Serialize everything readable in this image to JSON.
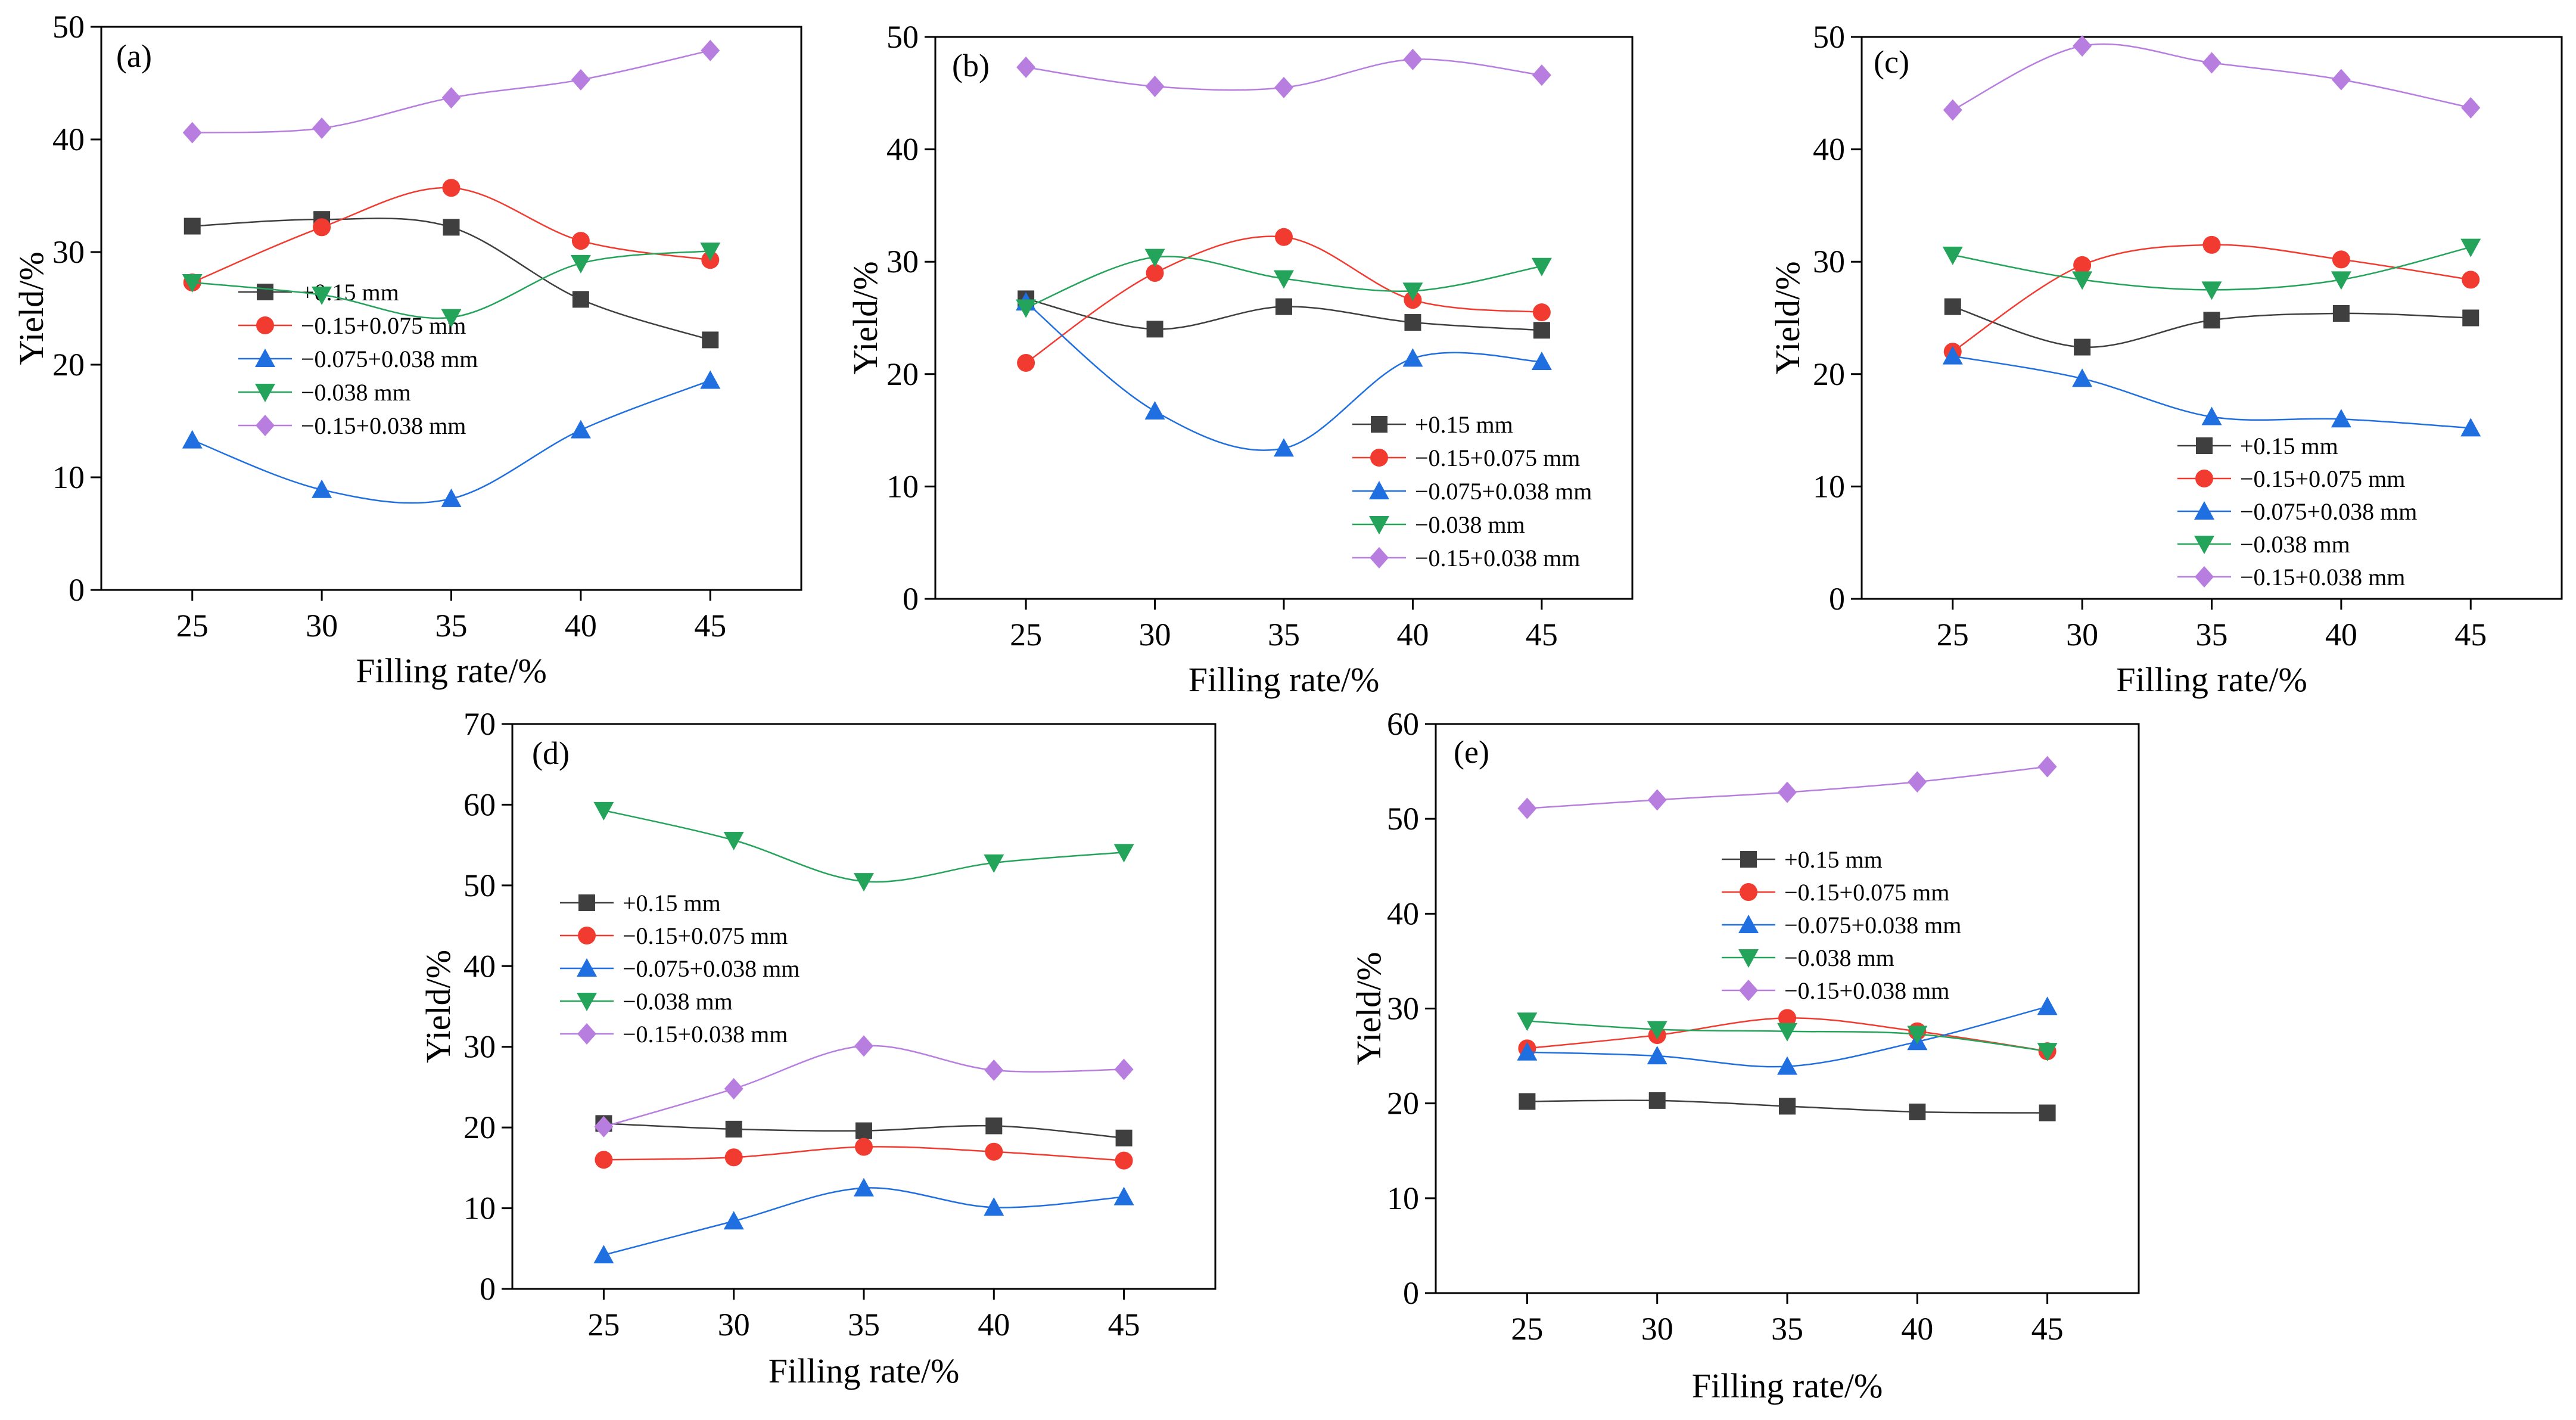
{
  "colors": {
    "+0.15 mm": "#3f3f3f",
    "-0.15+0.075 mm": "#f23b30",
    "-0.075+0.038 mm": "#1f6fe0",
    "-0.038 mm": "#24a45a",
    "-0.15+0.038 mm": "#b77ee0"
  },
  "chart_data": [
    {
      "type": "line",
      "panel": "(a)",
      "xlabel": "Filling rate/%",
      "ylabel": "Yield/%",
      "x": [
        25,
        30,
        35,
        40,
        45
      ],
      "xticks": [
        "25",
        "30",
        "35",
        "40",
        "45"
      ],
      "ylim": [
        0,
        50
      ],
      "yticks": [
        "0",
        "10",
        "20",
        "30",
        "40",
        "50"
      ],
      "series": [
        {
          "name": "+0.15 mm",
          "label": "+0.15 mm",
          "marker": "square",
          "values": [
            32.3,
            32.9,
            32.2,
            25.8,
            22.2
          ]
        },
        {
          "name": "-0.15+0.075 mm",
          "label": "−0.15+0.075 mm",
          "marker": "circle",
          "values": [
            27.3,
            32.2,
            35.7,
            31.0,
            29.3
          ]
        },
        {
          "name": "-0.075+0.038 mm",
          "label": "−0.075+0.038 mm",
          "marker": "triangle-up",
          "values": [
            13.3,
            8.9,
            8.1,
            14.2,
            18.6
          ]
        },
        {
          "name": "-0.038 mm",
          "label": "−0.038 mm",
          "marker": "triangle-down",
          "values": [
            27.3,
            26.2,
            24.2,
            29.0,
            30.1
          ]
        },
        {
          "name": "-0.15+0.038 mm",
          "label": "−0.15+0.038 mm",
          "marker": "diamond",
          "values": [
            40.6,
            41.0,
            43.7,
            45.3,
            47.9
          ]
        }
      ]
    },
    {
      "type": "line",
      "panel": "(b)",
      "xlabel": "Filling rate/%",
      "ylabel": "Yield/%",
      "x": [
        25,
        30,
        35,
        40,
        45
      ],
      "xticks": [
        "25",
        "30",
        "35",
        "40",
        "45"
      ],
      "ylim": [
        0,
        50
      ],
      "yticks": [
        "0",
        "10",
        "20",
        "30",
        "40",
        "50"
      ],
      "series": [
        {
          "name": "+0.15 mm",
          "label": "+0.15 mm",
          "marker": "square",
          "values": [
            26.7,
            24.0,
            26.0,
            24.6,
            23.9
          ]
        },
        {
          "name": "-0.15+0.075 mm",
          "label": "−0.15+0.075 mm",
          "marker": "circle",
          "values": [
            21.0,
            29.0,
            32.2,
            26.6,
            25.5
          ]
        },
        {
          "name": "-0.075+0.038 mm",
          "label": "−0.075+0.038 mm",
          "marker": "triangle-up",
          "values": [
            26.4,
            16.7,
            13.4,
            21.4,
            21.1
          ]
        },
        {
          "name": "-0.038 mm",
          "label": "−0.038 mm",
          "marker": "triangle-down",
          "values": [
            25.9,
            30.4,
            28.5,
            27.4,
            29.6
          ]
        },
        {
          "name": "-0.15+0.038 mm",
          "label": "−0.15+0.038 mm",
          "marker": "diamond",
          "values": [
            47.3,
            45.6,
            45.5,
            48.0,
            46.6
          ]
        }
      ]
    },
    {
      "type": "line",
      "panel": "(c)",
      "xlabel": "Filling rate/%",
      "ylabel": "Yield/%",
      "x": [
        25,
        30,
        35,
        40,
        45
      ],
      "xticks": [
        "25",
        "30",
        "35",
        "40",
        "45"
      ],
      "ylim": [
        0,
        50
      ],
      "yticks": [
        "0",
        "10",
        "20",
        "30",
        "40",
        "50"
      ],
      "series": [
        {
          "name": "+0.15 mm",
          "label": "+0.15 mm",
          "marker": "square",
          "values": [
            26.0,
            22.4,
            24.8,
            25.4,
            25.0
          ]
        },
        {
          "name": "-0.15+0.075 mm",
          "label": "−0.15+0.075 mm",
          "marker": "circle",
          "values": [
            22.0,
            29.7,
            31.5,
            30.2,
            28.4
          ]
        },
        {
          "name": "-0.075+0.038 mm",
          "label": "−0.075+0.038 mm",
          "marker": "triangle-up",
          "values": [
            21.6,
            19.6,
            16.2,
            16.0,
            15.2
          ]
        },
        {
          "name": "-0.038 mm",
          "label": "−0.038 mm",
          "marker": "triangle-down",
          "values": [
            30.6,
            28.4,
            27.5,
            28.4,
            31.3
          ]
        },
        {
          "name": "-0.15+0.038 mm",
          "label": "−0.15+0.038 mm",
          "marker": "diamond",
          "values": [
            43.5,
            49.2,
            47.7,
            46.2,
            43.7
          ]
        }
      ]
    },
    {
      "type": "line",
      "panel": "(d)",
      "xlabel": "Filling rate/%",
      "ylabel": "Yield/%",
      "x": [
        25,
        30,
        35,
        40,
        45
      ],
      "xticks": [
        "25",
        "30",
        "35",
        "40",
        "45"
      ],
      "ylim": [
        0,
        70
      ],
      "yticks": [
        "0",
        "10",
        "20",
        "30",
        "40",
        "50",
        "60",
        "70"
      ],
      "series": [
        {
          "name": "+0.15 mm",
          "label": "+0.15 mm",
          "marker": "square",
          "values": [
            20.5,
            19.8,
            19.6,
            20.2,
            18.7
          ]
        },
        {
          "name": "-0.15+0.075 mm",
          "label": "−0.15+0.075 mm",
          "marker": "circle",
          "values": [
            16.0,
            16.3,
            17.6,
            17.0,
            15.9
          ]
        },
        {
          "name": "-0.075+0.038 mm",
          "label": "−0.075+0.038 mm",
          "marker": "triangle-up",
          "values": [
            4.2,
            8.4,
            12.5,
            10.1,
            11.4
          ]
        },
        {
          "name": "-0.038 mm",
          "label": "−0.038 mm",
          "marker": "triangle-down",
          "values": [
            59.3,
            55.6,
            50.5,
            52.8,
            54.1
          ]
        },
        {
          "name": "-0.15+0.038 mm",
          "label": "−0.15+0.038 mm",
          "marker": "diamond",
          "values": [
            20.1,
            24.8,
            30.1,
            27.1,
            27.2
          ]
        }
      ]
    },
    {
      "type": "line",
      "panel": "(e)",
      "xlabel": "Filling rate/%",
      "ylabel": "Yield/%",
      "x": [
        25,
        30,
        35,
        40,
        45
      ],
      "xticks": [
        "25",
        "30",
        "35",
        "40",
        "45"
      ],
      "ylim": [
        0,
        60
      ],
      "yticks": [
        "0",
        "10",
        "20",
        "30",
        "40",
        "50",
        "60"
      ],
      "series": [
        {
          "name": "+0.15 mm",
          "label": "+0.15 mm",
          "marker": "square",
          "values": [
            20.2,
            20.3,
            19.7,
            19.1,
            19.0
          ]
        },
        {
          "name": "-0.15+0.075 mm",
          "label": "−0.15+0.075 mm",
          "marker": "circle",
          "values": [
            25.8,
            27.2,
            29.0,
            27.6,
            25.5
          ]
        },
        {
          "name": "-0.075+0.038 mm",
          "label": "−0.075+0.038 mm",
          "marker": "triangle-up",
          "values": [
            25.4,
            25.0,
            23.9,
            26.5,
            30.2
          ]
        },
        {
          "name": "-0.038 mm",
          "label": "−0.038 mm",
          "marker": "triangle-down",
          "values": [
            28.7,
            27.8,
            27.6,
            27.3,
            25.5
          ]
        },
        {
          "name": "-0.15+0.038 mm",
          "label": "−0.15+0.038 mm",
          "marker": "diamond",
          "values": [
            51.1,
            52.0,
            52.8,
            53.9,
            55.5
          ]
        }
      ]
    }
  ]
}
